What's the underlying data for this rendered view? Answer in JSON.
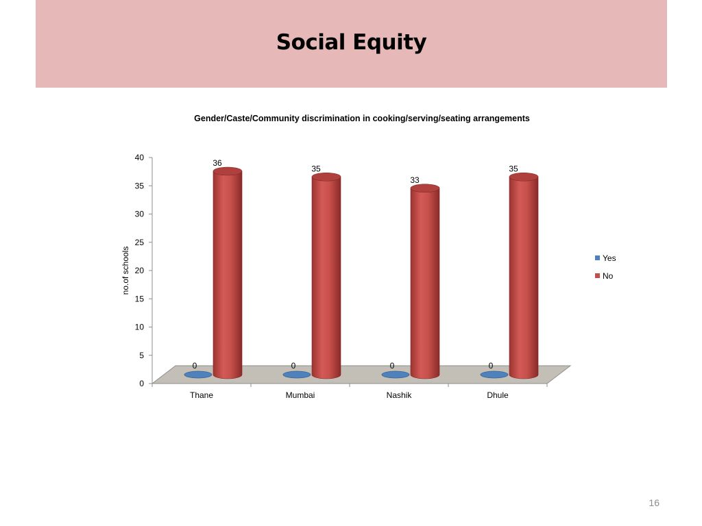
{
  "slide": {
    "title": "Social Equity",
    "page_number": "16"
  },
  "colors": {
    "title_band": "#e6b8b7",
    "yes_series": "#4f81bd",
    "no_series": "#c0504d",
    "floor": "#c3bfb6"
  },
  "chart_data": {
    "type": "bar",
    "style": "3d-cylinder",
    "title": "Gender/Caste/Community discrimination in cooking/serving/seating arrangements",
    "xlabel": "",
    "ylabel": "no.of schools",
    "ylim": [
      0,
      40
    ],
    "yticks": [
      0,
      5,
      10,
      15,
      20,
      25,
      30,
      35,
      40
    ],
    "categories": [
      "Thane",
      "Mumbai",
      "Nashik",
      "Dhule"
    ],
    "series": [
      {
        "name": "Yes",
        "values": [
          0,
          0,
          0,
          0
        ]
      },
      {
        "name": "No",
        "values": [
          36,
          35,
          33,
          35
        ]
      }
    ],
    "data_labels": true,
    "legend_position": "right",
    "grid": false
  }
}
